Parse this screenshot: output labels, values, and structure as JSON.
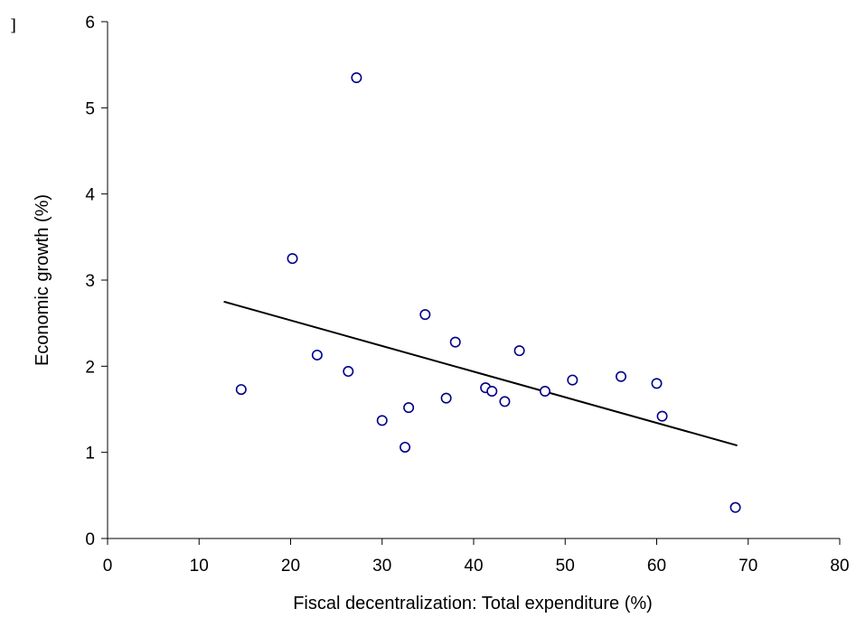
{
  "corner_mark": "]",
  "chart_data": {
    "type": "scatter",
    "title": "",
    "xlabel": "Fiscal decentralization: Total expenditure (%)",
    "ylabel": "Economic growth (%)",
    "xlim": [
      0,
      80
    ],
    "ylim": [
      0,
      6
    ],
    "xticks": [
      0,
      10,
      20,
      30,
      40,
      50,
      60,
      70,
      80
    ],
    "yticks": [
      0,
      1,
      2,
      3,
      4,
      5,
      6
    ],
    "grid": false,
    "legend": "none",
    "marker": "open-circle",
    "marker_color": "#00008B",
    "trendline_color": "#000000",
    "points": [
      {
        "x": 14.6,
        "y": 1.73
      },
      {
        "x": 20.2,
        "y": 3.25
      },
      {
        "x": 22.9,
        "y": 2.13
      },
      {
        "x": 26.3,
        "y": 1.94
      },
      {
        "x": 27.2,
        "y": 5.35
      },
      {
        "x": 30.0,
        "y": 1.37
      },
      {
        "x": 32.5,
        "y": 1.06
      },
      {
        "x": 32.9,
        "y": 1.52
      },
      {
        "x": 34.7,
        "y": 2.6
      },
      {
        "x": 37.0,
        "y": 1.63
      },
      {
        "x": 38.0,
        "y": 2.28
      },
      {
        "x": 41.3,
        "y": 1.75
      },
      {
        "x": 42.0,
        "y": 1.71
      },
      {
        "x": 43.4,
        "y": 1.59
      },
      {
        "x": 45.0,
        "y": 2.18
      },
      {
        "x": 47.8,
        "y": 1.71
      },
      {
        "x": 50.8,
        "y": 1.84
      },
      {
        "x": 56.1,
        "y": 1.88
      },
      {
        "x": 60.0,
        "y": 1.8
      },
      {
        "x": 60.6,
        "y": 1.42
      },
      {
        "x": 68.6,
        "y": 0.36
      }
    ],
    "trendline": {
      "x": [
        12.7,
        68.8
      ],
      "y": [
        2.75,
        1.08
      ]
    }
  }
}
